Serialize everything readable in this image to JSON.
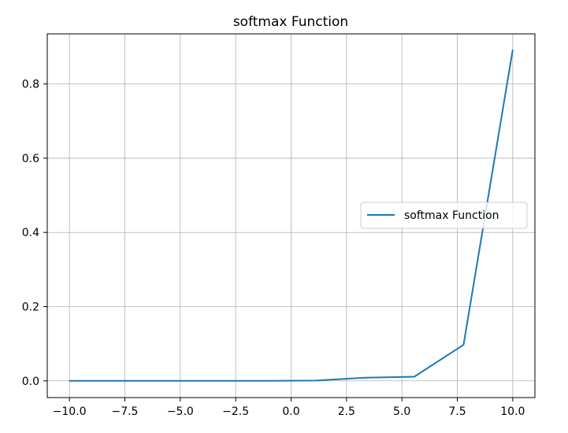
{
  "chart_data": {
    "type": "line",
    "title": "softmax Function",
    "xlabel": "",
    "ylabel": "",
    "xlim": [
      -11.0,
      11.0
    ],
    "ylim": [
      -0.045,
      0.935
    ],
    "grid": true,
    "legend_position": "center-right",
    "x_ticks": [
      -10.0,
      -7.5,
      -5.0,
      -2.5,
      0.0,
      2.5,
      5.0,
      7.5,
      10.0
    ],
    "x_tick_labels": [
      "−10.0",
      "−7.5",
      "−5.0",
      "−2.5",
      "0.0",
      "2.5",
      "5.0",
      "7.5",
      "10.0"
    ],
    "y_ticks": [
      0.0,
      0.2,
      0.4,
      0.6,
      0.8
    ],
    "y_tick_labels": [
      "0.0",
      "0.2",
      "0.4",
      "0.6",
      "0.8"
    ],
    "series": [
      {
        "name": "softmax Function",
        "color": "#1f77b4",
        "x": [
          -10.0,
          -7.78,
          -5.56,
          -3.33,
          -1.11,
          1.11,
          3.33,
          5.56,
          7.78,
          10.0
        ],
        "values": [
          0.0,
          0.0,
          0.0,
          0.0,
          0.0001,
          0.0009,
          0.0086,
          0.0112,
          0.0973,
          0.8922
        ]
      }
    ]
  }
}
